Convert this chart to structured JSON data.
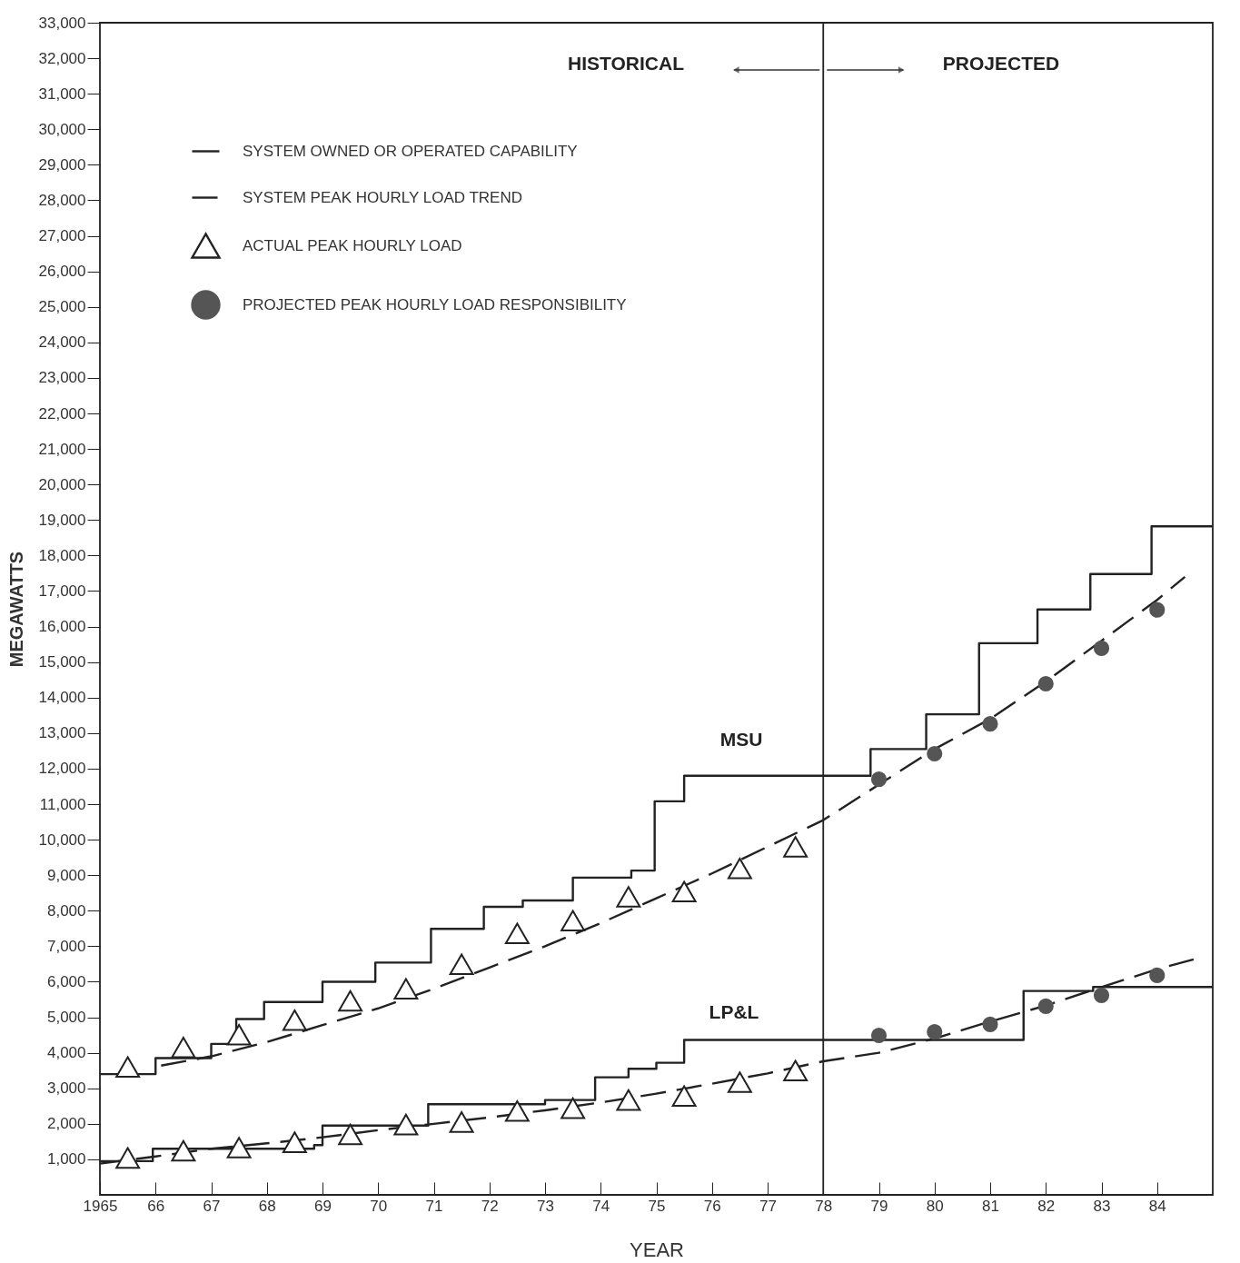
{
  "chart_data": {
    "type": "line",
    "xlabel": "YEAR",
    "ylabel": "MEGAWATTS",
    "xlim": [
      1965,
      1985
    ],
    "ylim": [
      0,
      33000
    ],
    "xticks": [
      1965,
      {
        "value": 1966,
        "label": "66"
      },
      {
        "value": 1967,
        "label": "67"
      },
      {
        "value": 1968,
        "label": "68"
      },
      {
        "value": 1969,
        "label": "69"
      },
      {
        "value": 1970,
        "label": "70"
      },
      {
        "value": 1971,
        "label": "71"
      },
      {
        "value": 1972,
        "label": "72"
      },
      {
        "value": 1973,
        "label": "73"
      },
      {
        "value": 1974,
        "label": "74"
      },
      {
        "value": 1975,
        "label": "75"
      },
      {
        "value": 1976,
        "label": "76"
      },
      {
        "value": 1977,
        "label": "77"
      },
      {
        "value": 1978,
        "label": "78"
      },
      {
        "value": 1979,
        "label": "79"
      },
      {
        "value": 1980,
        "label": "80"
      },
      {
        "value": 1981,
        "label": "81"
      },
      {
        "value": 1982,
        "label": "82"
      },
      {
        "value": 1983,
        "label": "83"
      },
      {
        "value": 1984,
        "label": "84"
      }
    ],
    "yticks": [
      {
        "value": 1000,
        "label": "1,000"
      },
      {
        "value": 2000,
        "label": "2,000"
      },
      {
        "value": 3000,
        "label": "3,000"
      },
      {
        "value": 4000,
        "label": "4,000"
      },
      {
        "value": 5000,
        "label": "5,000"
      },
      {
        "value": 6000,
        "label": "6,000"
      },
      {
        "value": 7000,
        "label": "7,000"
      },
      {
        "value": 8000,
        "label": "8,000"
      },
      {
        "value": 9000,
        "label": "9,000"
      },
      {
        "value": 10000,
        "label": "10,000"
      },
      {
        "value": 11000,
        "label": "11,000"
      },
      {
        "value": 12000,
        "label": "12,000"
      },
      {
        "value": 13000,
        "label": "13,000"
      },
      {
        "value": 14000,
        "label": "14,000"
      },
      {
        "value": 15000,
        "label": "15,000"
      },
      {
        "value": 16000,
        "label": "16,000"
      },
      {
        "value": 17000,
        "label": "17,000"
      },
      {
        "value": 18000,
        "label": "18,000"
      },
      {
        "value": 19000,
        "label": "19,000"
      },
      {
        "value": 20000,
        "label": "20,000"
      },
      {
        "value": 21000,
        "label": "21,000"
      },
      {
        "value": 22000,
        "label": "22,000"
      },
      {
        "value": 23000,
        "label": "23,000"
      },
      {
        "value": 24000,
        "label": "24,000"
      },
      {
        "value": 25000,
        "label": "25,000"
      },
      {
        "value": 26000,
        "label": "26,000"
      },
      {
        "value": 27000,
        "label": "27,000"
      },
      {
        "value": 28000,
        "label": "28,000"
      },
      {
        "value": 29000,
        "label": "29,000"
      },
      {
        "value": 30000,
        "label": "30,000"
      },
      {
        "value": 31000,
        "label": "31,000"
      },
      {
        "value": 32000,
        "label": "32,000"
      },
      {
        "value": 33000,
        "label": "33,000"
      }
    ],
    "grid": false,
    "legend": "top left",
    "series": [
      {
        "type": "step",
        "name": "SYSTEM OWNED OR OPERATED CAPABILITY",
        "color": "#222222",
        "line_style": "solid",
        "x": [
          1965,
          1966,
          1967,
          1967.45,
          1967.95,
          1969,
          1969.95,
          1970.95,
          1971.9,
          1972.6,
          1973.5,
          1974.55,
          1974.97,
          1975.5,
          1978.85,
          1979.85,
          1980.8,
          1981.85,
          1982.8,
          1983.9,
          1985
        ],
        "values": [
          3400,
          3850,
          4250,
          4950,
          5430,
          6000,
          6540,
          7490,
          8110,
          8290,
          8930,
          9130,
          11080,
          11800,
          12550,
          13530,
          15530,
          16480,
          17480,
          18820,
          18820
        ]
      },
      {
        "type": "line",
        "name": "SYSTEM PEAK HOURLY LOAD TREND",
        "color": "#222222",
        "line_style": "dashed",
        "x": [
          1966.1,
          1967,
          1968,
          1969,
          1970,
          1971,
          1972,
          1973,
          1974,
          1975,
          1976,
          1977,
          1978,
          1979,
          1980,
          1981,
          1982,
          1983,
          1984,
          1984.5
        ],
        "values": [
          3640,
          3900,
          4300,
          4780,
          5250,
          5800,
          6400,
          7000,
          7650,
          8350,
          9050,
          9800,
          10550,
          11550,
          12550,
          13400,
          14450,
          15600,
          16750,
          17400
        ]
      },
      {
        "type": "scatter",
        "name": "ACTUAL PEAK HOURLY LOAD",
        "color": "#222222",
        "marker": "triangle",
        "x": [
          1965.5,
          1966.5,
          1967.5,
          1968.5,
          1969.5,
          1970.5,
          1971.5,
          1972.5,
          1973.5,
          1974.5,
          1975.5,
          1976.5,
          1977.5
        ],
        "values": [
          3600,
          4150,
          4510,
          4920,
          5460,
          5800,
          6490,
          7360,
          7720,
          8390,
          8540,
          9190,
          9800
        ]
      },
      {
        "type": "scatter",
        "name": "PROJECTED PEAK HOURLY LOAD RESPONSIBILITY",
        "color": "#555555",
        "marker": "circle",
        "x": [
          1979,
          1980,
          1981,
          1982,
          1983,
          1984
        ],
        "values": [
          11700,
          12420,
          13260,
          14390,
          15390,
          16470
        ]
      },
      {
        "type": "step",
        "color": "#222222",
        "line_style": "solid",
        "x": [
          1965,
          1965.95,
          1968.85,
          1969,
          1970.9,
          1973,
          1973.9,
          1974.5,
          1975,
          1975.5,
          1981.6,
          1982.85,
          1985
        ],
        "values": [
          950,
          1300,
          1400,
          1950,
          2550,
          2670,
          3310,
          3550,
          3720,
          4360,
          5740,
          5850,
          5850
        ]
      },
      {
        "type": "line",
        "color": "#222222",
        "line_style": "dashed",
        "x": [
          1965,
          1966,
          1967,
          1968,
          1969,
          1970,
          1971,
          1972,
          1973,
          1974,
          1975,
          1976,
          1977,
          1978,
          1979,
          1980,
          1981,
          1982,
          1983,
          1984,
          1984.7
        ],
        "values": [
          880,
          1080,
          1300,
          1450,
          1620,
          1820,
          2000,
          2180,
          2380,
          2600,
          2850,
          3130,
          3420,
          3760,
          4000,
          4400,
          4880,
          5330,
          5850,
          6350,
          6650
        ]
      },
      {
        "type": "scatter",
        "color": "#222222",
        "marker": "triangle",
        "x": [
          1965.5,
          1966.5,
          1967.5,
          1968.5,
          1969.5,
          1970.5,
          1971.5,
          1972.5,
          1973.5,
          1974.5,
          1975.5,
          1976.5,
          1977.5
        ],
        "values": [
          1040,
          1240,
          1330,
          1480,
          1700,
          1980,
          2050,
          2360,
          2440,
          2670,
          2780,
          3170,
          3500
        ]
      },
      {
        "type": "scatter",
        "color": "#555555",
        "marker": "circle",
        "x": [
          1979,
          1980,
          1981,
          1982,
          1983,
          1984
        ],
        "values": [
          4490,
          4590,
          4800,
          5310,
          5620,
          6180
        ]
      }
    ],
    "ref_lines": [
      {
        "axis": "x",
        "value": 1978,
        "color": "#222222",
        "line_style": "solid"
      }
    ],
    "annotations": [
      "HISTORICAL",
      "PROJECTED",
      "MSU",
      "LP&L"
    ]
  }
}
